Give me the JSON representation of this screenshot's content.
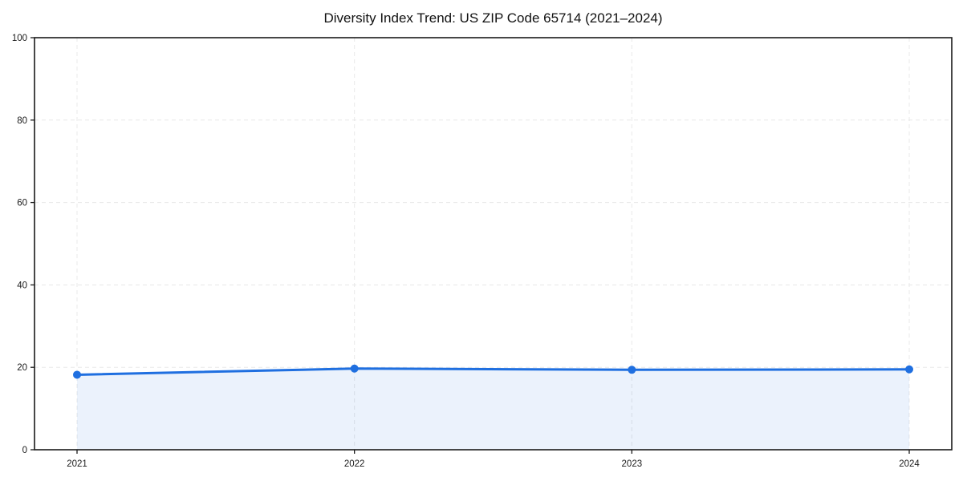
{
  "chart_data": {
    "type": "line",
    "title": "Diversity Index Trend: US ZIP Code 65714 (2021–2024)",
    "x": [
      2021,
      2022,
      2023,
      2024
    ],
    "xtick_labels": [
      "2021",
      "2022",
      "2023",
      "2024"
    ],
    "series": [
      {
        "name": "Diversity Index",
        "values": [
          18.2,
          19.7,
          19.4,
          19.5
        ]
      }
    ],
    "xlabel": "",
    "ylabel": "",
    "ylim": [
      0,
      100
    ],
    "yticks": [
      0,
      20,
      40,
      60,
      80,
      100
    ],
    "ytick_labels": [
      "0",
      "20",
      "40",
      "60",
      "80",
      "100"
    ],
    "grid": true,
    "grid_style": "dashed",
    "legend": false,
    "marker": "circle",
    "colors": {
      "line": "#1f6fe0",
      "marker": "#1f6fe0",
      "area_fill": "rgba(31,111,224,0.09)",
      "grid": "#e8e8e8",
      "spine": "#1a1a1a",
      "tick": "#1a1a1a",
      "background": "#ffffff"
    }
  }
}
